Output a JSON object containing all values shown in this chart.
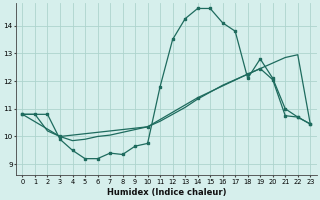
{
  "xlabel": "Humidex (Indice chaleur)",
  "bg_color": "#d6efec",
  "grid_color": "#aed4ce",
  "line_color": "#1e6b5e",
  "xlim": [
    -0.5,
    23.5
  ],
  "ylim": [
    8.6,
    14.8
  ],
  "yticks": [
    9,
    10,
    11,
    12,
    13,
    14
  ],
  "xticks": [
    0,
    1,
    2,
    3,
    4,
    5,
    6,
    7,
    8,
    9,
    10,
    11,
    12,
    13,
    14,
    15,
    16,
    17,
    18,
    19,
    20,
    21,
    22,
    23
  ],
  "s1_x": [
    0,
    1,
    2,
    3,
    4,
    5,
    6,
    7,
    8,
    9,
    10,
    11,
    12,
    13,
    14,
    15,
    16,
    17,
    18,
    19,
    20,
    21,
    22,
    23
  ],
  "s1_y": [
    10.8,
    10.8,
    10.8,
    9.9,
    9.5,
    9.2,
    9.2,
    9.4,
    9.35,
    9.65,
    9.75,
    11.8,
    13.5,
    14.25,
    14.62,
    14.62,
    14.1,
    13.8,
    12.1,
    12.8,
    12.1,
    11.0,
    10.7,
    10.45
  ],
  "s2_x": [
    0,
    3,
    10,
    14,
    18,
    19,
    20,
    21,
    22,
    23
  ],
  "s2_y": [
    10.8,
    10.0,
    10.35,
    11.4,
    12.25,
    12.45,
    12.05,
    10.75,
    10.7,
    10.45
  ],
  "s3_x": [
    0,
    1,
    2,
    3,
    4,
    5,
    6,
    7,
    8,
    9,
    10,
    11,
    12,
    13,
    14,
    15,
    16,
    17,
    18,
    19,
    20,
    21,
    22,
    23
  ],
  "s3_y": [
    10.8,
    10.8,
    10.2,
    10.0,
    9.85,
    9.9,
    10.0,
    10.05,
    10.15,
    10.25,
    10.35,
    10.55,
    10.8,
    11.05,
    11.35,
    11.6,
    11.85,
    12.05,
    12.25,
    12.45,
    12.65,
    12.85,
    12.95,
    10.45
  ]
}
